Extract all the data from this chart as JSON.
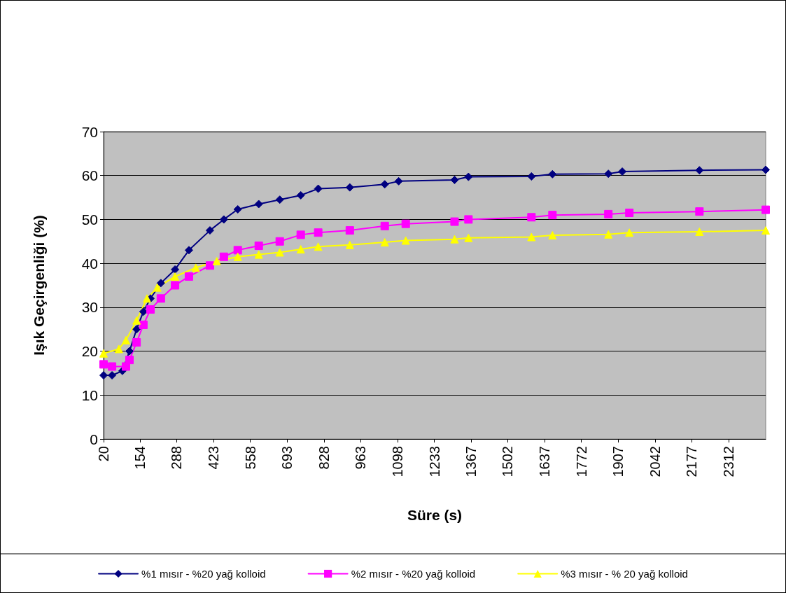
{
  "chart_data": {
    "type": "line",
    "xlabel": "Süre (s)",
    "ylabel": "Işık Geçirgenliği (%)",
    "xlim": [
      20,
      2448
    ],
    "xticks": [
      20,
      154,
      288,
      423,
      558,
      693,
      828,
      963,
      1098,
      1233,
      1367,
      1502,
      1637,
      1772,
      1907,
      2042,
      2177,
      2312
    ],
    "ylim": [
      0,
      70
    ],
    "yticks": [
      0,
      10,
      20,
      30,
      40,
      50,
      60,
      70
    ],
    "grid": "y",
    "legend": "bottom",
    "series": [
      {
        "name": "%1 mısır - %20 yağ kolloid",
        "color": "#000080",
        "marker": "diamond",
        "x": [
          20,
          51,
          89,
          115,
          141,
          166,
          192,
          230,
          282,
          333,
          410,
          461,
          512,
          589,
          666,
          743,
          807,
          923,
          1051,
          1102,
          1307,
          1358,
          1589,
          1666,
          1871,
          1922,
          2205,
          2448
        ],
        "values": [
          14.5,
          14.5,
          15.5,
          20,
          25,
          29,
          32,
          35.5,
          38.6,
          43,
          47.5,
          50,
          52.3,
          53.5,
          54.5,
          55.5,
          57,
          57.3,
          58,
          58.7,
          59,
          59.7,
          59.8,
          60.3,
          60.4,
          60.9,
          61.2,
          61.3
        ]
      },
      {
        "name": "%2 mısır - %20 yağ kolloid",
        "color": "#ff00ff",
        "marker": "square",
        "x": [
          20,
          51,
          102,
          115,
          141,
          166,
          192,
          230,
          282,
          333,
          410,
          461,
          512,
          589,
          666,
          743,
          807,
          923,
          1051,
          1128,
          1307,
          1358,
          1589,
          1666,
          1871,
          1948,
          2205,
          2448
        ],
        "values": [
          17,
          16.5,
          16.5,
          18,
          22,
          26,
          29.5,
          32,
          35,
          37,
          39.5,
          41.5,
          43,
          44,
          45,
          46.5,
          47,
          47.5,
          48.5,
          49,
          49.5,
          50,
          50.5,
          51,
          51.2,
          51.5,
          51.8,
          52.2
        ]
      },
      {
        "name": "%3 mısır - % 20 yağ kolloid",
        "color": "#ffff00",
        "marker": "triangle",
        "x": [
          20,
          76,
          102,
          141,
          179,
          217,
          282,
          358,
          435,
          512,
          589,
          666,
          743,
          807,
          923,
          1051,
          1128,
          1307,
          1358,
          1589,
          1666,
          1871,
          1948,
          2205,
          2448
        ],
        "values": [
          19.5,
          20.5,
          22.5,
          27,
          32,
          34.5,
          37,
          39,
          40.5,
          41.5,
          42,
          42.5,
          43.2,
          43.8,
          44.2,
          44.8,
          45.2,
          45.5,
          45.8,
          46,
          46.4,
          46.6,
          47,
          47.2,
          47.5
        ]
      }
    ]
  }
}
